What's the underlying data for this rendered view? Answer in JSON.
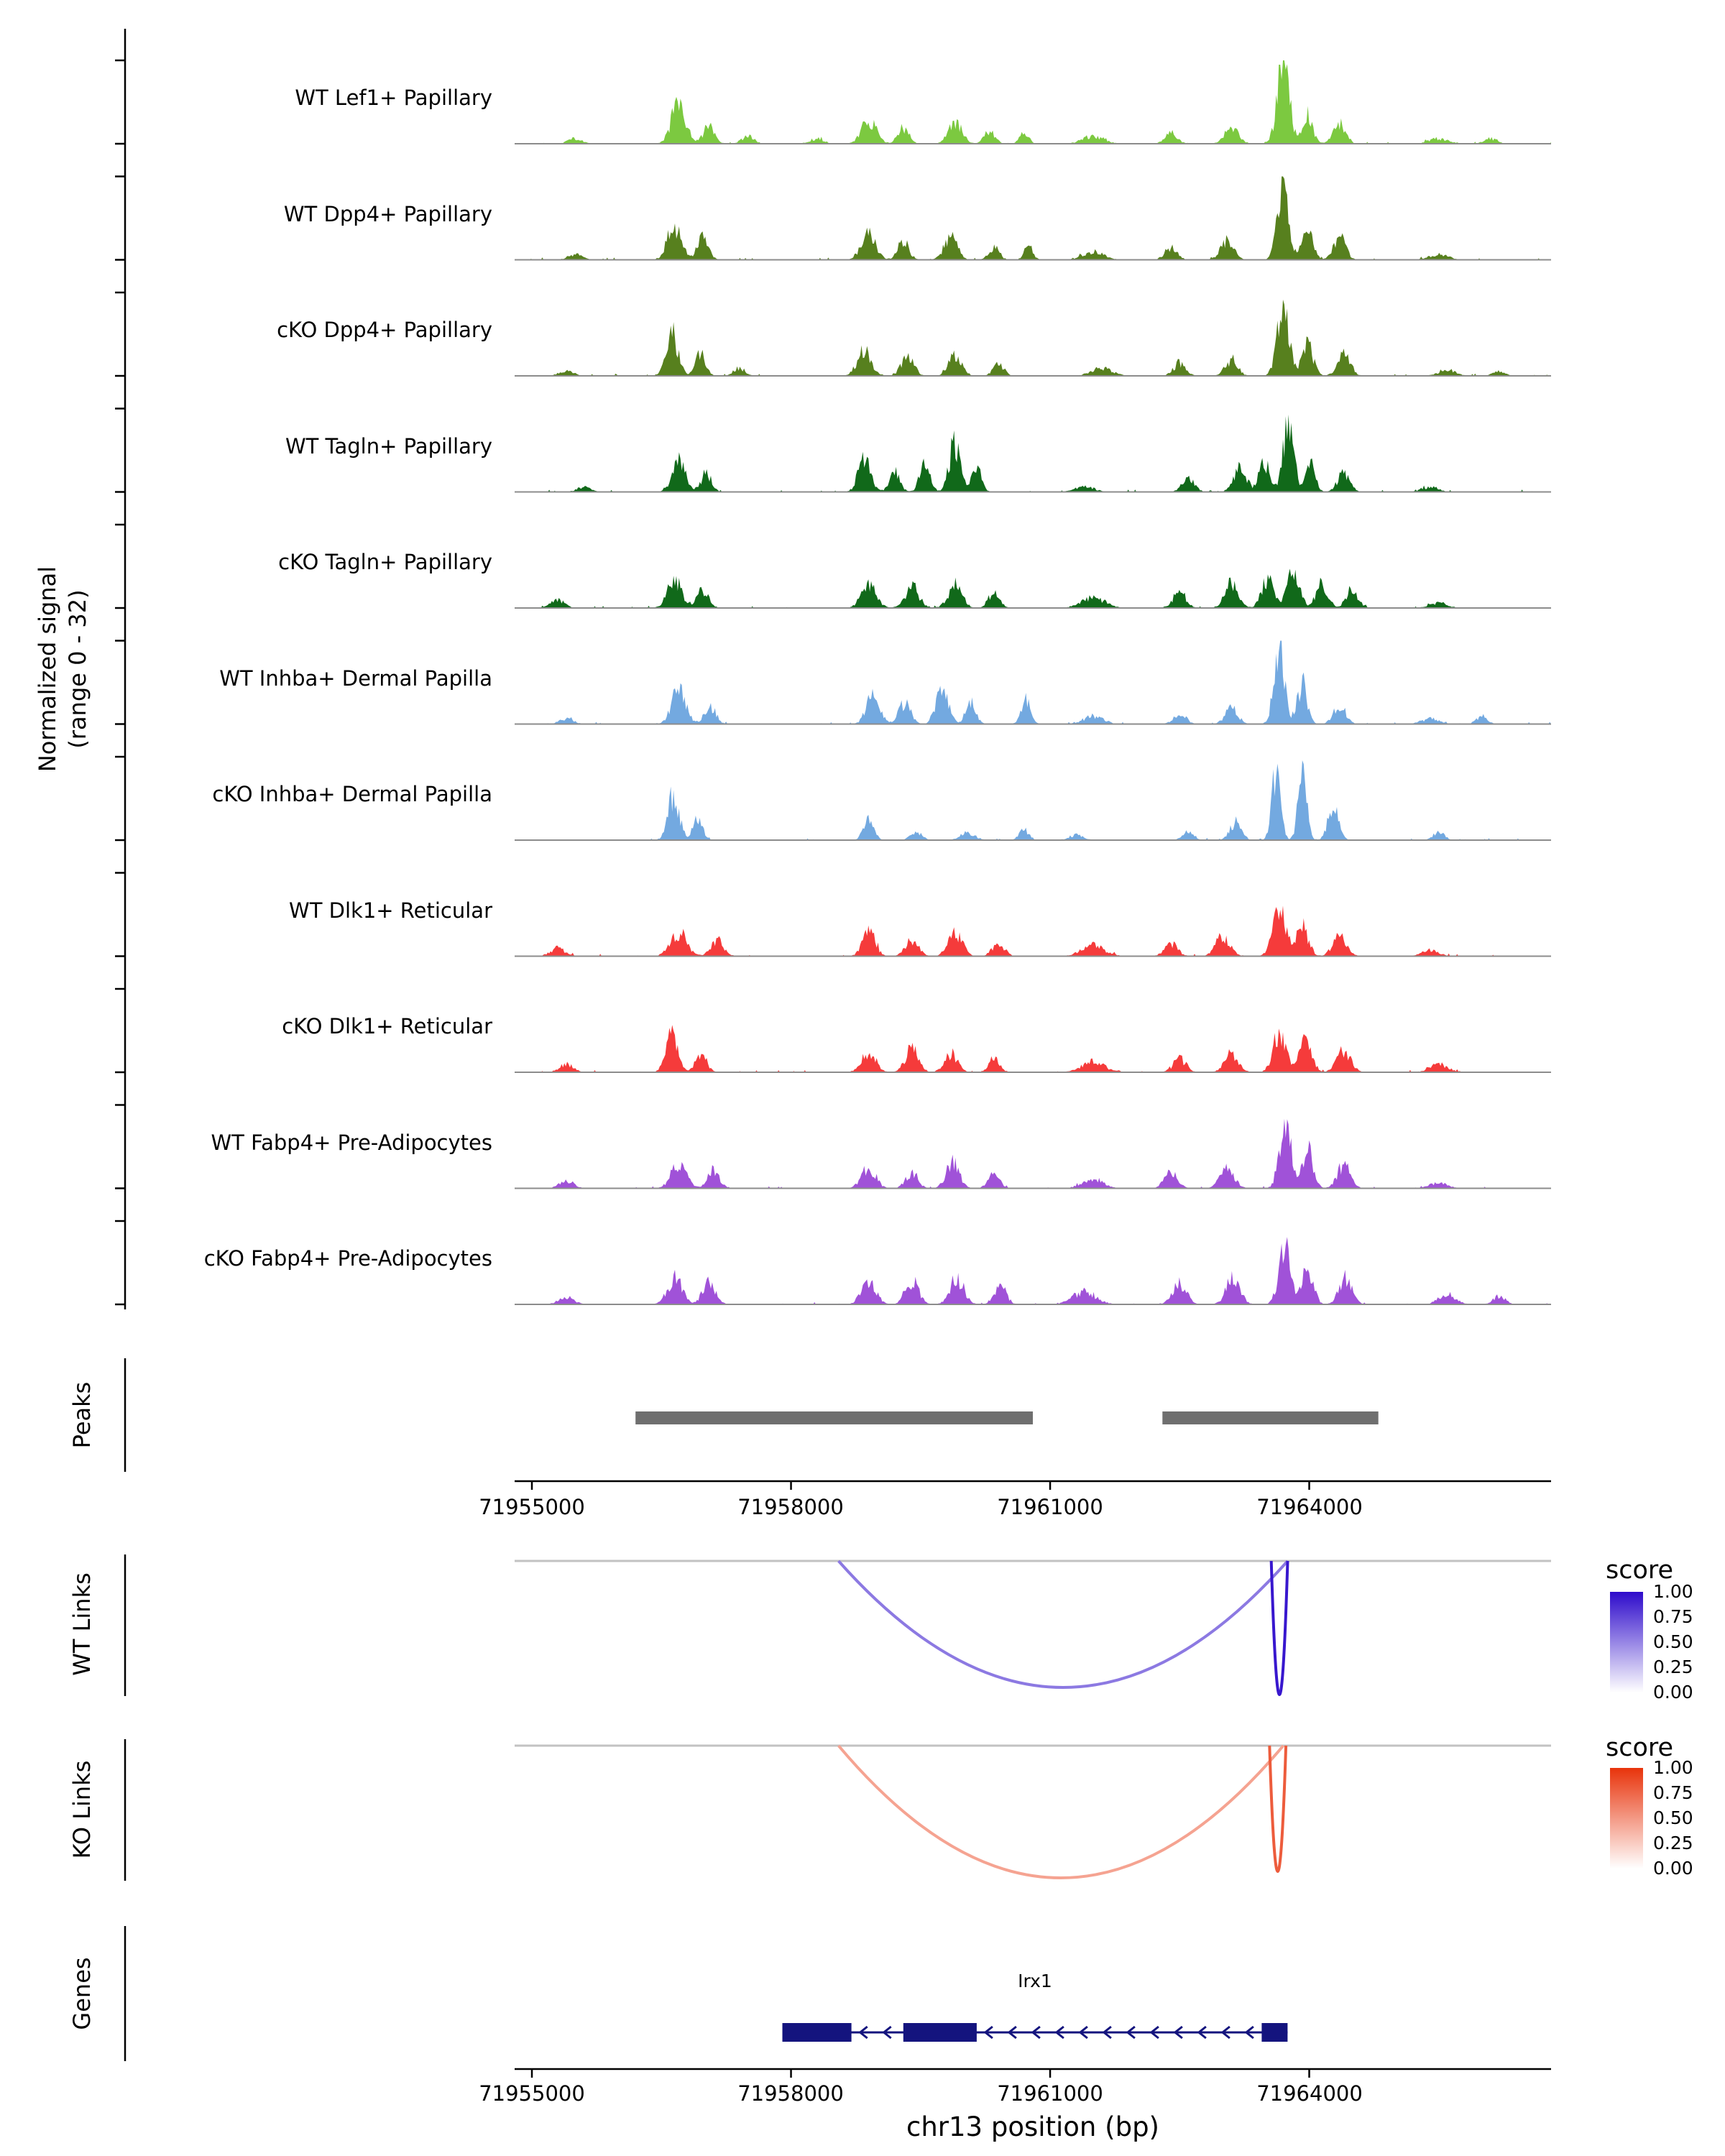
{
  "y_axis": {
    "label_line1": "Normalized signal",
    "label_line2": "(range 0 - 32)"
  },
  "sections": {
    "peaks": "Peaks",
    "wt_links": "WT Links",
    "ko_links": "KO Links",
    "genes": "Genes"
  },
  "x_axis": {
    "title": "chr13 position (bp)",
    "tick_labels": [
      "71955000",
      "71958000",
      "71961000",
      "71964000"
    ],
    "tick_positions": [
      71955000,
      71958000,
      71961000,
      71964000
    ]
  },
  "legend_wt": {
    "title": "score",
    "labels": [
      "1.00",
      "0.75",
      "0.50",
      "0.25",
      "0.00"
    ],
    "color_high": "#2E0BCB",
    "color_low": "#FFFFFF"
  },
  "legend_ko": {
    "title": "score",
    "labels": [
      "1.00",
      "0.75",
      "0.50",
      "0.25",
      "0.00"
    ],
    "color_high": "#E8330B",
    "color_low": "#FFFFFF"
  },
  "chart_data": {
    "type": "area",
    "genome": {
      "chrom": "chr13",
      "xmin": 71954800,
      "xmax": 71966800
    },
    "signal_range": [
      0,
      32
    ],
    "peak_color": "#6F6F6F",
    "peak_regions": [
      [
        71956200,
        71960800
      ],
      [
        71962300,
        71964800
      ]
    ],
    "links_wt": [
      {
        "start": 71958550,
        "end": 71963750,
        "score": 0.55,
        "depth": 176
      },
      {
        "start": 71963560,
        "end": 71963750,
        "score": 0.95,
        "depth": 186
      }
    ],
    "links_ko": [
      {
        "start": 71958550,
        "end": 71963700,
        "score": 0.45,
        "depth": 184
      },
      {
        "start": 71963540,
        "end": 71963730,
        "score": 0.8,
        "depth": 175
      }
    ],
    "gene": {
      "name": "Irx1",
      "strand": "-",
      "color": "#14147E",
      "body": [
        71957900,
        71963750
      ],
      "exons": [
        [
          71957900,
          71958700
        ],
        [
          71959300,
          71960150
        ],
        [
          71963450,
          71963750
        ]
      ]
    },
    "tracks": [
      {
        "label": "WT Lef1+ Papillary",
        "color": "#7CC940",
        "seed": 101,
        "peaks": [
          [
            71955500,
            2,
            160
          ],
          [
            71956700,
            15,
            170
          ],
          [
            71957050,
            7,
            130
          ],
          [
            71957500,
            3,
            140
          ],
          [
            71958300,
            2,
            160
          ],
          [
            71958900,
            9,
            170
          ],
          [
            71959300,
            6,
            130
          ],
          [
            71959900,
            8,
            160
          ],
          [
            71960300,
            5,
            120
          ],
          [
            71960700,
            5,
            100
          ],
          [
            71961500,
            3,
            240
          ],
          [
            71962400,
            4,
            140
          ],
          [
            71963100,
            6,
            160
          ],
          [
            71963700,
            29,
            140
          ],
          [
            71963980,
            11,
            120
          ],
          [
            71964350,
            8,
            140
          ],
          [
            71965500,
            2,
            220
          ],
          [
            71966100,
            2,
            140
          ]
        ]
      },
      {
        "label": "WT Dpp4+ Papillary",
        "color": "#57801E",
        "seed": 202,
        "peaks": [
          [
            71955500,
            2,
            160
          ],
          [
            71956650,
            13,
            160
          ],
          [
            71956980,
            8,
            130
          ],
          [
            71958900,
            10,
            160
          ],
          [
            71959300,
            7,
            130
          ],
          [
            71959850,
            9,
            150
          ],
          [
            71960350,
            5,
            120
          ],
          [
            71960750,
            5,
            100
          ],
          [
            71961500,
            3,
            240
          ],
          [
            71962400,
            5,
            140
          ],
          [
            71963050,
            7,
            150
          ],
          [
            71963700,
            30,
            130
          ],
          [
            71963980,
            13,
            120
          ],
          [
            71964350,
            9,
            140
          ],
          [
            71965500,
            2,
            220
          ]
        ]
      },
      {
        "label": "cKO Dpp4+ Papillary",
        "color": "#57801E",
        "seed": 303,
        "peaks": [
          [
            71955400,
            2,
            160
          ],
          [
            71956620,
            16,
            140
          ],
          [
            71956950,
            8,
            120
          ],
          [
            71957400,
            3,
            130
          ],
          [
            71958850,
            10,
            160
          ],
          [
            71959350,
            8,
            140
          ],
          [
            71959900,
            8,
            150
          ],
          [
            71960400,
            5,
            120
          ],
          [
            71961600,
            3,
            230
          ],
          [
            71962500,
            5,
            140
          ],
          [
            71963100,
            6,
            140
          ],
          [
            71963700,
            25,
            140
          ],
          [
            71963980,
            12,
            130
          ],
          [
            71964400,
            8,
            150
          ],
          [
            71965600,
            2,
            200
          ],
          [
            71966200,
            2,
            130
          ]
        ]
      },
      {
        "label": "WT Tagln+ Papillary",
        "color": "#11691A",
        "seed": 404,
        "peaks": [
          [
            71955600,
            2,
            150
          ],
          [
            71956700,
            12,
            150
          ],
          [
            71957020,
            7,
            120
          ],
          [
            71958850,
            13,
            140
          ],
          [
            71959200,
            8,
            120
          ],
          [
            71959550,
            10,
            120
          ],
          [
            71959900,
            19,
            130
          ],
          [
            71960150,
            9,
            110
          ],
          [
            71961400,
            2,
            220
          ],
          [
            71962600,
            5,
            140
          ],
          [
            71963200,
            9,
            150
          ],
          [
            71963480,
            11,
            120
          ],
          [
            71963760,
            27,
            120
          ],
          [
            71964020,
            10,
            110
          ],
          [
            71964400,
            7,
            140
          ],
          [
            71965400,
            2,
            180
          ]
        ]
      },
      {
        "label": "cKO Tagln+ Papillary",
        "color": "#11691A",
        "seed": 505,
        "peaks": [
          [
            71955300,
            3,
            160
          ],
          [
            71956650,
            11,
            160
          ],
          [
            71956980,
            7,
            130
          ],
          [
            71958900,
            9,
            170
          ],
          [
            71959400,
            8,
            160
          ],
          [
            71959900,
            9,
            160
          ],
          [
            71960350,
            6,
            130
          ],
          [
            71961500,
            4,
            260
          ],
          [
            71962500,
            6,
            150
          ],
          [
            71963100,
            9,
            160
          ],
          [
            71963520,
            11,
            140
          ],
          [
            71963820,
            14,
            140
          ],
          [
            71964150,
            9,
            140
          ],
          [
            71964500,
            7,
            140
          ],
          [
            71965500,
            2,
            200
          ]
        ]
      },
      {
        "label": "WT Inhba+ Dermal Papilla",
        "color": "#73A9E0",
        "seed": 606,
        "peaks": [
          [
            71955400,
            2,
            160
          ],
          [
            71956700,
            13,
            160
          ],
          [
            71957060,
            7,
            130
          ],
          [
            71958950,
            11,
            150
          ],
          [
            71959320,
            8,
            140
          ],
          [
            71959750,
            13,
            140
          ],
          [
            71960080,
            8,
            120
          ],
          [
            71960720,
            9,
            110
          ],
          [
            71961500,
            3,
            230
          ],
          [
            71962500,
            4,
            140
          ],
          [
            71963100,
            6,
            150
          ],
          [
            71963650,
            29,
            120
          ],
          [
            71963920,
            15,
            120
          ],
          [
            71964350,
            7,
            140
          ],
          [
            71965400,
            2,
            200
          ],
          [
            71966000,
            3,
            130
          ]
        ]
      },
      {
        "label": "cKO Inhba+ Dermal Papilla",
        "color": "#73A9E0",
        "seed": 707,
        "peaks": [
          [
            71956640,
            17,
            130
          ],
          [
            71956920,
            8,
            110
          ],
          [
            71958900,
            9,
            120
          ],
          [
            71959450,
            3,
            130
          ],
          [
            71960050,
            3,
            160
          ],
          [
            71960700,
            4,
            110
          ],
          [
            71961300,
            2,
            160
          ],
          [
            71962600,
            3,
            130
          ],
          [
            71963150,
            7,
            130
          ],
          [
            71963620,
            29,
            100
          ],
          [
            71963920,
            24,
            100
          ],
          [
            71964280,
            13,
            120
          ],
          [
            71965500,
            3,
            130
          ]
        ]
      },
      {
        "label": "WT Dlk1+ Reticular",
        "color": "#F53B3B",
        "seed": 808,
        "peaks": [
          [
            71955300,
            3,
            170
          ],
          [
            71956700,
            9,
            190
          ],
          [
            71957150,
            6,
            150
          ],
          [
            71958900,
            11,
            140
          ],
          [
            71959400,
            6,
            150
          ],
          [
            71959900,
            9,
            160
          ],
          [
            71960400,
            5,
            140
          ],
          [
            71961500,
            4,
            260
          ],
          [
            71962400,
            5,
            150
          ],
          [
            71963000,
            8,
            160
          ],
          [
            71963650,
            18,
            150
          ],
          [
            71963920,
            11,
            140
          ],
          [
            71964350,
            7,
            160
          ],
          [
            71965400,
            2,
            210
          ]
        ]
      },
      {
        "label": "cKO Dlk1+ Reticular",
        "color": "#F53B3B",
        "seed": 909,
        "peaks": [
          [
            71955400,
            3,
            160
          ],
          [
            71956620,
            14,
            140
          ],
          [
            71956960,
            7,
            130
          ],
          [
            71958900,
            8,
            160
          ],
          [
            71959400,
            9,
            150
          ],
          [
            71959850,
            7,
            150
          ],
          [
            71960350,
            5,
            130
          ],
          [
            71961500,
            4,
            260
          ],
          [
            71962500,
            5,
            150
          ],
          [
            71963100,
            7,
            160
          ],
          [
            71963660,
            15,
            150
          ],
          [
            71963960,
            12,
            140
          ],
          [
            71964400,
            8,
            160
          ],
          [
            71965500,
            3,
            210
          ]
        ]
      },
      {
        "label": "WT Fabp4+ Pre-Adipocytes",
        "color": "#A052D8",
        "seed": 1010,
        "peaks": [
          [
            71955400,
            3,
            160
          ],
          [
            71956700,
            10,
            170
          ],
          [
            71957100,
            7,
            140
          ],
          [
            71958900,
            8,
            160
          ],
          [
            71959400,
            6,
            140
          ],
          [
            71959870,
            10,
            150
          ],
          [
            71960350,
            6,
            130
          ],
          [
            71961500,
            3,
            260
          ],
          [
            71962400,
            6,
            150
          ],
          [
            71963050,
            8,
            160
          ],
          [
            71963720,
            27,
            130
          ],
          [
            71963980,
            14,
            130
          ],
          [
            71964400,
            9,
            150
          ],
          [
            71965500,
            2,
            210
          ]
        ]
      },
      {
        "label": "cKO Fabp4+ Pre-Adipocytes",
        "color": "#A052D8",
        "seed": 1111,
        "peaks": [
          [
            71955400,
            3,
            170
          ],
          [
            71956660,
            10,
            170
          ],
          [
            71957050,
            8,
            150
          ],
          [
            71958900,
            10,
            160
          ],
          [
            71959400,
            9,
            150
          ],
          [
            71959920,
            10,
            160
          ],
          [
            71960420,
            7,
            140
          ],
          [
            71961400,
            5,
            260
          ],
          [
            71962500,
            8,
            160
          ],
          [
            71963120,
            10,
            160
          ],
          [
            71963720,
            21,
            140
          ],
          [
            71963980,
            15,
            130
          ],
          [
            71964420,
            10,
            150
          ],
          [
            71965600,
            4,
            190
          ],
          [
            71966200,
            3,
            140
          ]
        ]
      }
    ]
  }
}
